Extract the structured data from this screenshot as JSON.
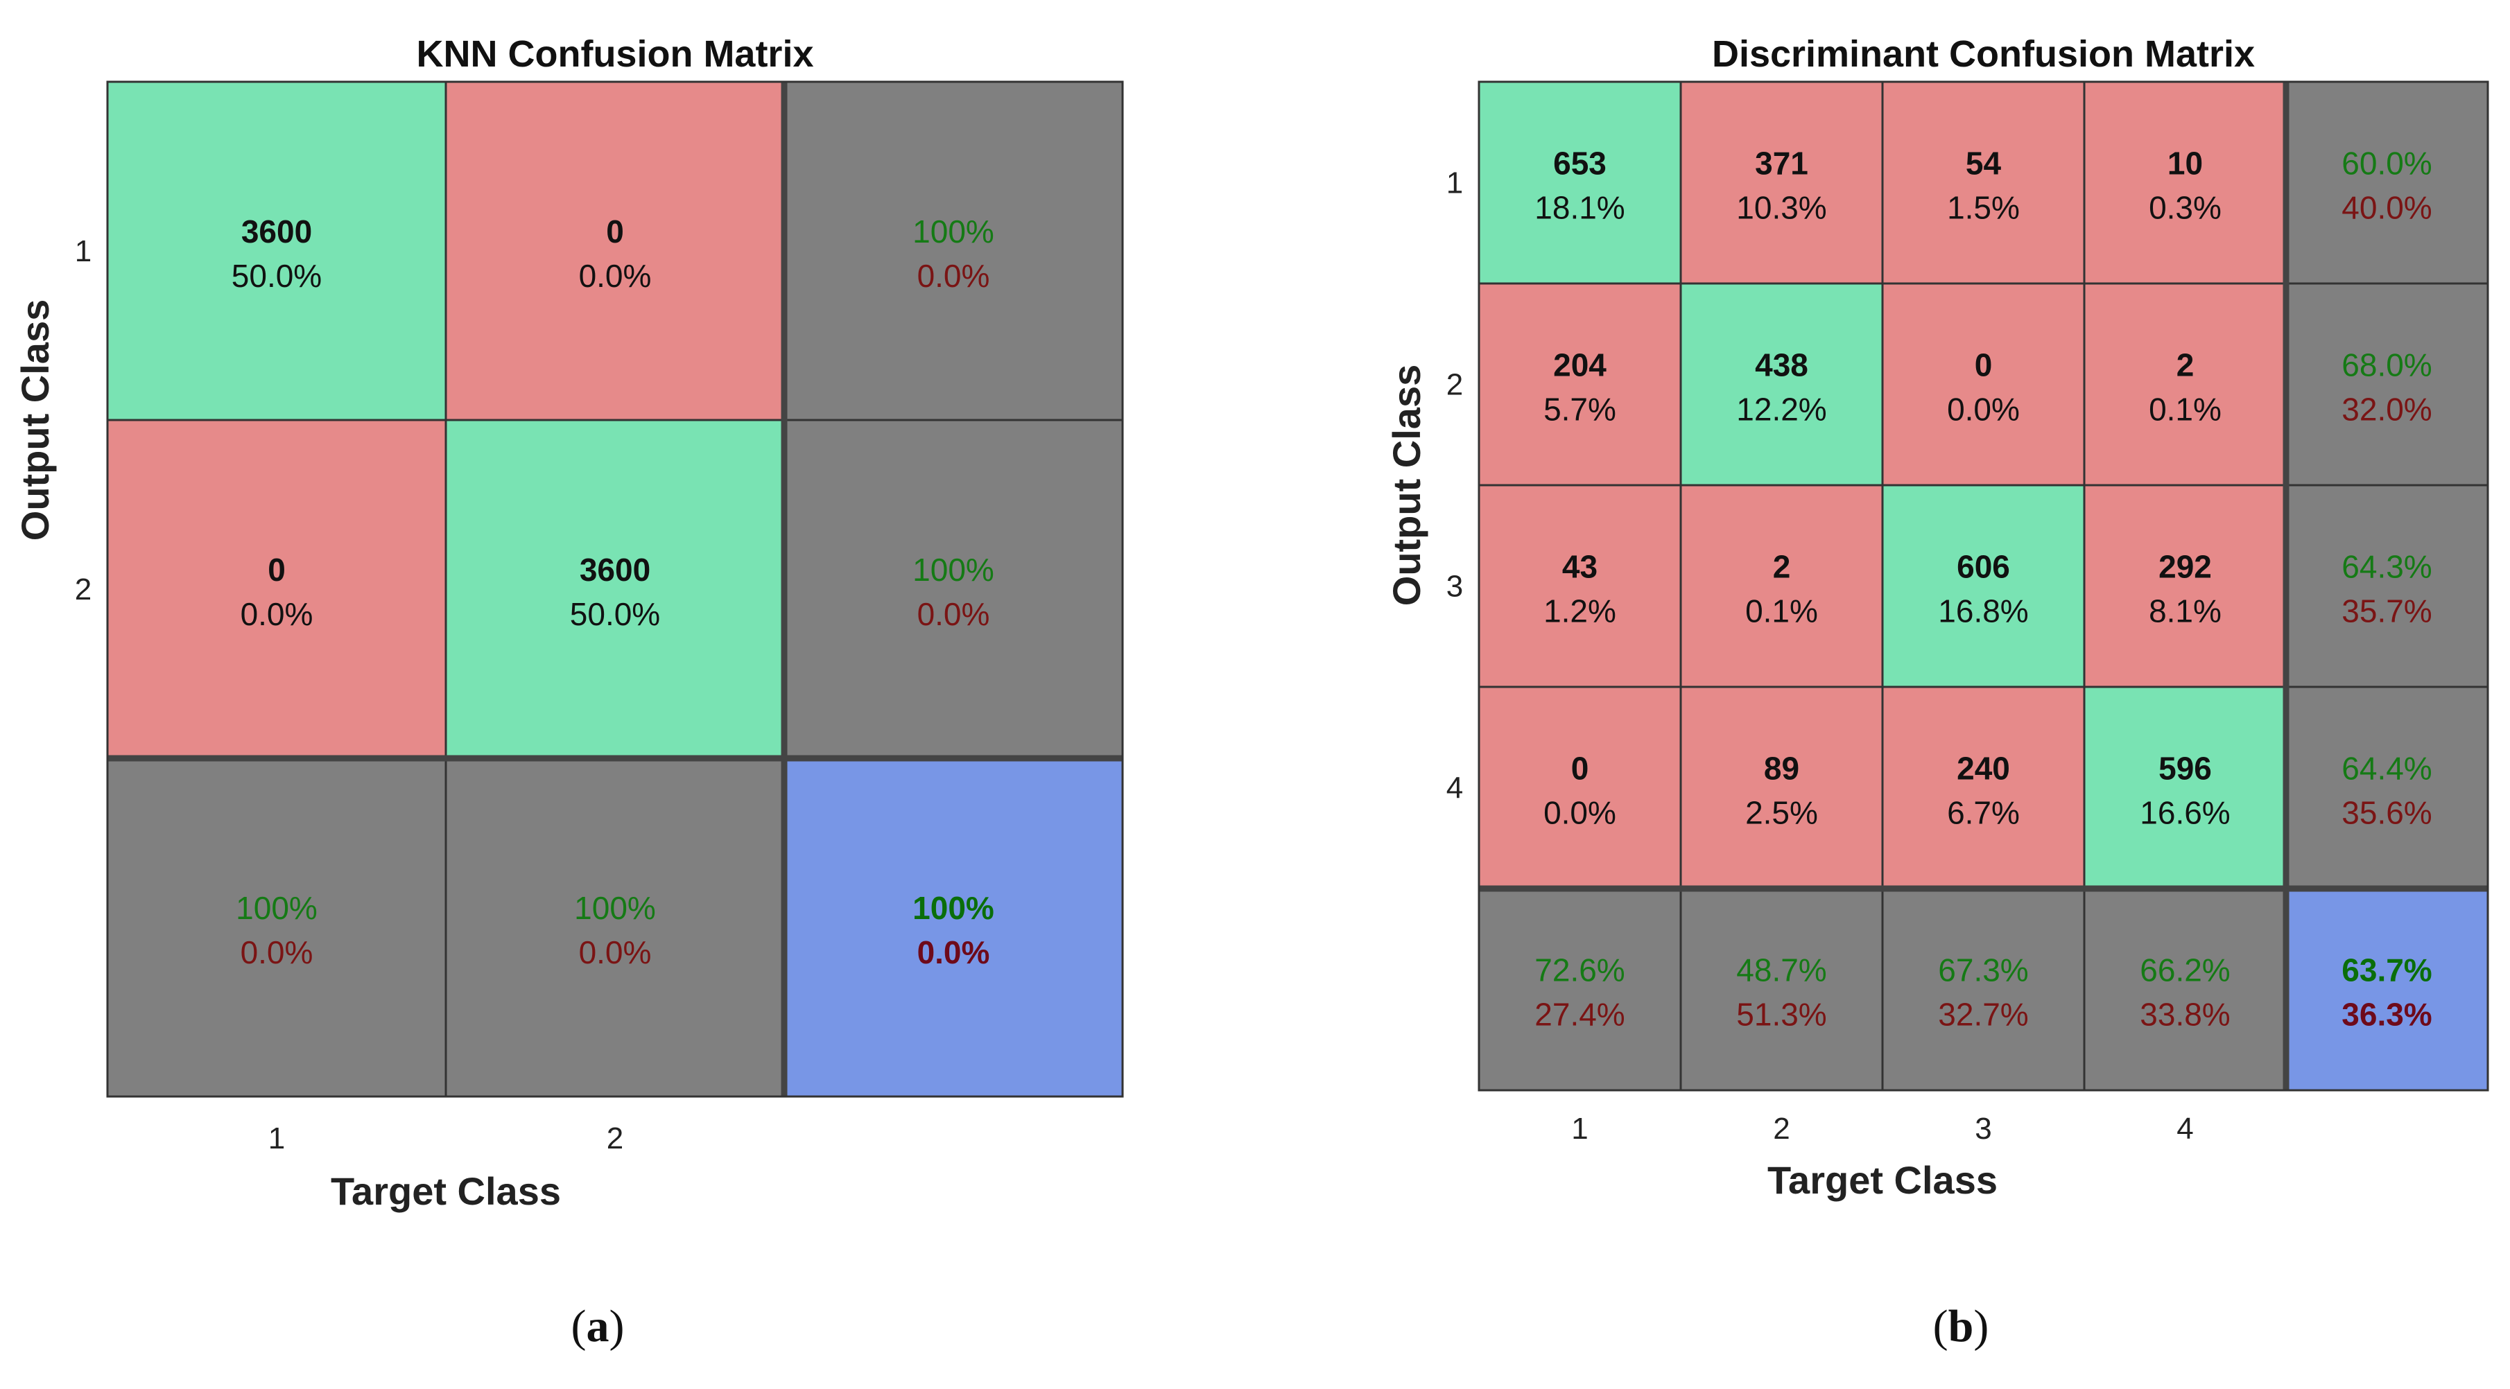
{
  "colors": {
    "correct": "#79e3b3",
    "incorrect": "#e68a8a",
    "summary": "#808080",
    "total": "#7896e6",
    "good_text": "#157a15",
    "bad_text": "#7a1414",
    "total_good_text": "#0a6e0a",
    "total_bad_text": "#6e0a1a",
    "text": "#111111",
    "border": "#333333"
  },
  "chart_data": [
    {
      "type": "table",
      "panel_label": "(a)",
      "title": "KNN Confusion Matrix",
      "xlabel": "Target Class",
      "ylabel": "Output Class",
      "classes": [
        "1",
        "2"
      ],
      "counts": [
        [
          3600,
          0
        ],
        [
          0,
          3600
        ]
      ],
      "percents": [
        [
          "50.0%",
          "0.0%"
        ],
        [
          "0.0%",
          "50.0%"
        ]
      ],
      "row_summary": [
        [
          "100%",
          "0.0%"
        ],
        [
          "100%",
          "0.0%"
        ]
      ],
      "col_summary": [
        [
          "100%",
          "0.0%"
        ],
        [
          "100%",
          "0.0%"
        ]
      ],
      "total_summary": [
        "100%",
        "0.0%"
      ]
    },
    {
      "type": "table",
      "panel_label": "(b)",
      "title": "Discriminant Confusion Matrix",
      "xlabel": "Target Class",
      "ylabel": "Output Class",
      "classes": [
        "1",
        "2",
        "3",
        "4"
      ],
      "counts": [
        [
          653,
          371,
          54,
          10
        ],
        [
          204,
          438,
          0,
          2
        ],
        [
          43,
          2,
          606,
          292
        ],
        [
          0,
          89,
          240,
          596
        ]
      ],
      "percents": [
        [
          "18.1%",
          "10.3%",
          "1.5%",
          "0.3%"
        ],
        [
          "5.7%",
          "12.2%",
          "0.0%",
          "0.1%"
        ],
        [
          "1.2%",
          "0.1%",
          "16.8%",
          "8.1%"
        ],
        [
          "0.0%",
          "2.5%",
          "6.7%",
          "16.6%"
        ]
      ],
      "row_summary": [
        [
          "60.0%",
          "40.0%"
        ],
        [
          "68.0%",
          "32.0%"
        ],
        [
          "64.3%",
          "35.7%"
        ],
        [
          "64.4%",
          "35.6%"
        ]
      ],
      "col_summary": [
        [
          "72.6%",
          "27.4%"
        ],
        [
          "48.7%",
          "51.3%"
        ],
        [
          "67.3%",
          "32.7%"
        ],
        [
          "66.2%",
          "33.8%"
        ]
      ],
      "total_summary": [
        "63.7%",
        "36.3%"
      ]
    }
  ]
}
